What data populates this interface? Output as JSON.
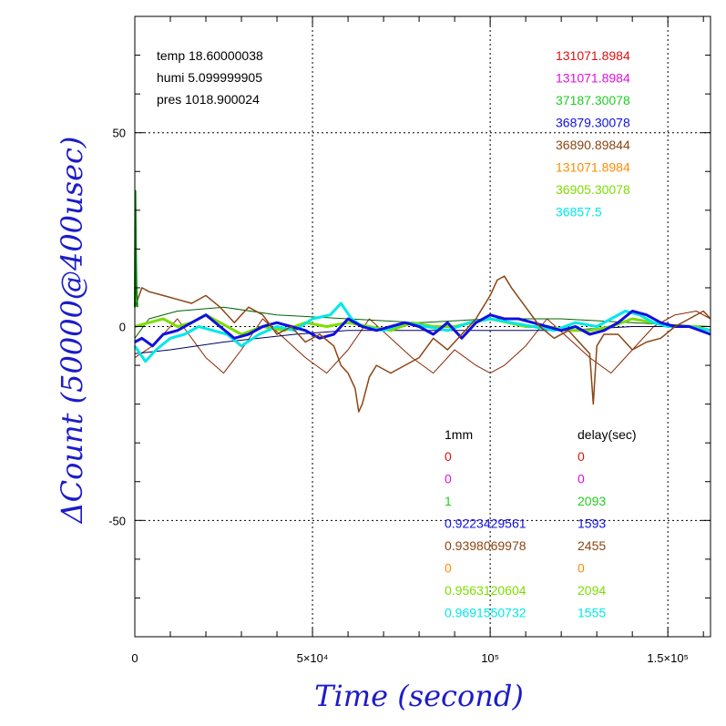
{
  "chart_data": {
    "type": "line",
    "xlabel": "Time (second)",
    "ylabel": "ΔCount (50000@400usec)",
    "xlim": [
      0,
      162000
    ],
    "ylim": [
      -80,
      80
    ],
    "grid": true,
    "x_ticks": [
      {
        "value": 0,
        "label": "0"
      },
      {
        "value": 50000,
        "label": "5×10⁴"
      },
      {
        "value": 100000,
        "label": "10⁵"
      },
      {
        "value": 150000,
        "label": "1.5×10⁵"
      }
    ],
    "y_ticks": [
      {
        "value": 50,
        "label": "50"
      },
      {
        "value": 0,
        "label": "0"
      },
      {
        "value": -50,
        "label": "-50"
      }
    ],
    "env_labels": [
      {
        "name": "temp",
        "value": "18.60000038",
        "color": "#8b0000"
      },
      {
        "name": "humi",
        "value": "5.099999905",
        "color": "#008000"
      },
      {
        "name": "pres",
        "value": "1018.900024",
        "color": "#000080"
      }
    ],
    "right_values": [
      {
        "text": "131071.8984",
        "color": "#e01010"
      },
      {
        "text": "131071.8984",
        "color": "#e010e0"
      },
      {
        "text": "37187.30078",
        "color": "#22cc22"
      },
      {
        "text": "36879.30078",
        "color": "#1010e0"
      },
      {
        "text": "36890.89844",
        "color": "#8b4513"
      },
      {
        "text": "131071.8984",
        "color": "#ff8c00"
      },
      {
        "text": "36905.30078",
        "color": "#7cdd00"
      },
      {
        "text": "36857.5",
        "color": "#00e8e8"
      }
    ],
    "table_headers": {
      "col1": "1mm",
      "col2": "delay(sec)"
    },
    "table_rows": [
      {
        "v1": "0",
        "v2": "0",
        "color": "#e01010"
      },
      {
        "v1": "0",
        "v2": "0",
        "color": "#e010e0"
      },
      {
        "v1": "1",
        "v2": "2093",
        "color": "#22cc22"
      },
      {
        "v1": "0.9223429561",
        "v2": "1593",
        "color": "#1010e0"
      },
      {
        "v1": "0.9398069978",
        "v2": "2455",
        "color": "#8b4513"
      },
      {
        "v1": "0",
        "v2": "0",
        "color": "#ff8c00"
      },
      {
        "v1": "0.9563120604",
        "v2": "2094",
        "color": "#7cdd00"
      },
      {
        "v1": "0.9691550732",
        "v2": "1555",
        "color": "#00e8e8"
      }
    ],
    "series": [
      {
        "color": "#8b2500",
        "width": 1,
        "x": [
          0,
          5000,
          12000,
          20000,
          25000,
          30000,
          36000,
          42000,
          48000,
          54000,
          60000,
          66000,
          72000,
          78000,
          84000,
          90000,
          96000,
          100000,
          104000,
          110000,
          116000,
          122000,
          128000,
          134000,
          140000,
          146000,
          152000,
          158000,
          162000
        ],
        "y": [
          -8,
          -5,
          2,
          -8,
          -12,
          -6,
          2,
          -3,
          -8,
          -12,
          -6,
          2,
          -3,
          -8,
          -12,
          -6,
          -10,
          -12,
          -10,
          -5,
          2,
          -3,
          -8,
          -12,
          -6,
          0,
          3,
          4,
          2
        ]
      },
      {
        "color": "#006400",
        "width": 1,
        "x": [
          0,
          4000,
          12000,
          25000,
          40000,
          60000,
          80000,
          100000,
          120000,
          140000,
          162000
        ],
        "y": [
          -3,
          2,
          4,
          5,
          3,
          2,
          1,
          2,
          2,
          1,
          0
        ]
      },
      {
        "color": "#000060",
        "width": 1,
        "x": [
          0,
          10000,
          25000,
          45000,
          60000,
          80000,
          100000,
          120000,
          140000,
          162000
        ],
        "y": [
          -7,
          -6,
          -4,
          -2,
          -1,
          -1,
          -1,
          -1,
          0,
          0
        ]
      },
      {
        "color": "#7cdd00",
        "width": 3,
        "x": [
          0,
          4000,
          8000,
          12000,
          16000,
          20000,
          24000,
          30000,
          36000,
          42000,
          48000,
          54000,
          60000,
          66000,
          72000,
          78000,
          84000,
          90000,
          95000,
          100000,
          105000,
          110000,
          116000,
          122000,
          128000,
          134000,
          140000,
          146000,
          152000,
          158000,
          162000
        ],
        "y": [
          0,
          1,
          2,
          0,
          1,
          3,
          1,
          -2,
          0,
          -1,
          1,
          0,
          1,
          0,
          -1,
          1,
          0,
          0,
          1,
          2,
          1,
          0,
          0,
          -1,
          -1,
          0,
          2,
          1,
          0,
          0,
          -1
        ]
      },
      {
        "color": "#00e8e8",
        "width": 3,
        "x": [
          0,
          3000,
          6000,
          10000,
          14000,
          18000,
          22000,
          26000,
          30000,
          35000,
          40000,
          45000,
          50000,
          55000,
          58000,
          61000,
          64000,
          70000,
          76000,
          82000,
          88000,
          94000,
          100000,
          106000,
          112000,
          118000,
          124000,
          130000,
          134000,
          138000,
          142000,
          146000,
          150000,
          156000,
          162000
        ],
        "y": [
          -5,
          -9,
          -6,
          -3,
          -2,
          0,
          -1,
          -2,
          -5,
          -2,
          0,
          -1,
          2,
          3,
          6,
          2,
          0,
          -1,
          1,
          0,
          -1,
          1,
          2,
          1,
          0,
          -1,
          1,
          0,
          2,
          4,
          3,
          1,
          0,
          0,
          -1
        ]
      },
      {
        "color": "#1010e0",
        "width": 3,
        "x": [
          0,
          2000,
          5000,
          8000,
          12000,
          16000,
          20000,
          24000,
          28000,
          32000,
          36000,
          40000,
          44000,
          48000,
          52000,
          56000,
          60000,
          64000,
          68000,
          72000,
          76000,
          80000,
          84000,
          88000,
          92000,
          96000,
          100000,
          104000,
          108000,
          112000,
          116000,
          120000,
          124000,
          128000,
          132000,
          136000,
          140000,
          144000,
          148000,
          152000,
          156000,
          162000
        ],
        "y": [
          -4,
          -3,
          -5,
          -2,
          -1,
          1,
          3,
          0,
          -3,
          -2,
          0,
          1,
          0,
          -1,
          -3,
          -2,
          2,
          0,
          -1,
          0,
          1,
          0,
          -2,
          1,
          -3,
          1,
          3,
          2,
          2,
          1,
          0,
          -1,
          0,
          -2,
          -1,
          1,
          4,
          3,
          1,
          0,
          0,
          -2
        ]
      },
      {
        "color": "#8b4513",
        "width": 1.5,
        "x": [
          0,
          2000,
          4000,
          8000,
          12000,
          16000,
          20000,
          24000,
          28000,
          32000,
          36000,
          40000,
          44000,
          48000,
          52000,
          56000,
          58000,
          60000,
          62000,
          63000,
          64000,
          66000,
          68000,
          72000,
          76000,
          80000,
          84000,
          88000,
          92000,
          96000,
          100000,
          102000,
          104000,
          106000,
          110000,
          114000,
          118000,
          122000,
          126000,
          128000,
          129000,
          130000,
          132000,
          136000,
          140000,
          144000,
          148000,
          152000,
          156000,
          160000,
          162000
        ],
        "y": [
          5,
          10,
          9,
          8,
          7,
          6,
          8,
          5,
          1,
          5,
          3,
          -2,
          0,
          -4,
          -2,
          -5,
          -10,
          -12,
          -16,
          -22,
          -20,
          -13,
          -10,
          -12,
          -10,
          -8,
          -3,
          -6,
          -2,
          2,
          8,
          12,
          13,
          10,
          5,
          0,
          -3,
          -1,
          -5,
          -7,
          -20,
          -5,
          -2,
          -2,
          -6,
          -4,
          -3,
          0,
          2,
          4,
          2
        ]
      },
      {
        "color": "#008000",
        "width": 2,
        "x": [
          0,
          150,
          300,
          450,
          700
        ],
        "y": [
          5,
          35,
          20,
          10,
          5
        ]
      }
    ]
  }
}
